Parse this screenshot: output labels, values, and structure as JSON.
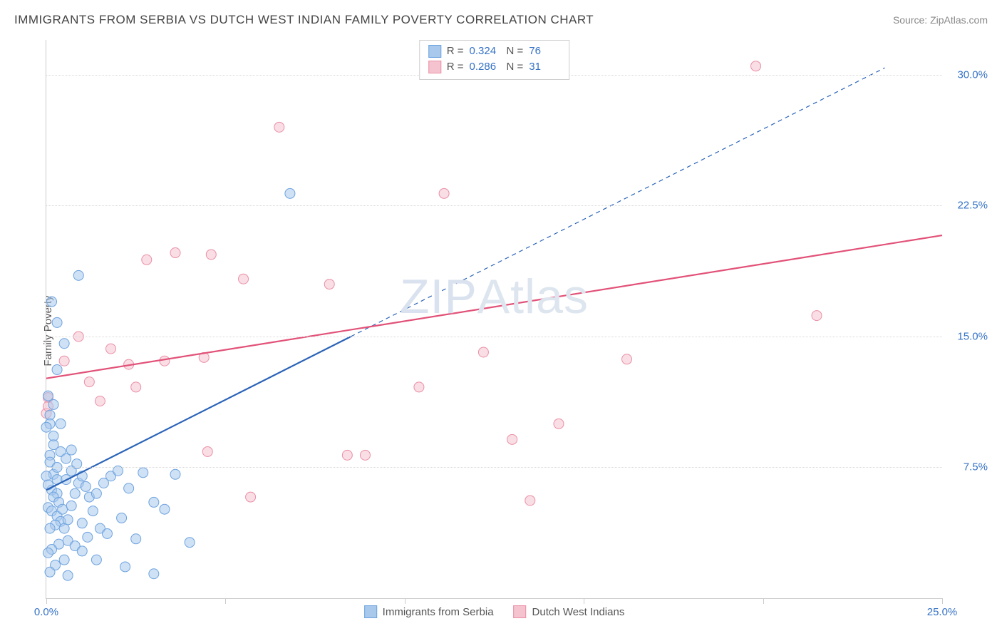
{
  "header": {
    "title": "IMMIGRANTS FROM SERBIA VS DUTCH WEST INDIAN FAMILY POVERTY CORRELATION CHART",
    "source_label": "Source: ",
    "source_value": "ZipAtlas.com"
  },
  "watermark": {
    "part1": "ZIP",
    "part2": "Atlas"
  },
  "chart": {
    "type": "scatter",
    "ylabel": "Family Poverty",
    "background_color": "#ffffff",
    "grid_color": "#d8d8d8",
    "axis_color": "#cccccc",
    "label_color": "#3572c6",
    "xlim": [
      0,
      25
    ],
    "ylim": [
      0,
      32
    ],
    "xticks": [
      0,
      5,
      10,
      15,
      20,
      25
    ],
    "xtick_labels": [
      "0.0%",
      "",
      "",
      "",
      "",
      "25.0%"
    ],
    "yticks": [
      7.5,
      15.0,
      22.5,
      30.0
    ],
    "ytick_labels": [
      "7.5%",
      "15.0%",
      "22.5%",
      "30.0%"
    ],
    "marker_radius": 7,
    "marker_opacity": 0.55,
    "line_width": 2.2,
    "series": [
      {
        "id": "serbia",
        "label": "Immigrants from Serbia",
        "color_fill": "#a8c8ec",
        "color_stroke": "#6ea3df",
        "line_color": "#2a63b8",
        "R": "0.324",
        "N": "76",
        "trend_solid": {
          "x1": 0,
          "y1": 6.2,
          "x2": 8.5,
          "y2": 15.0
        },
        "trend_dashed": {
          "x1": 8.5,
          "y1": 15.0,
          "x2": 23.4,
          "y2": 30.4
        },
        "points": [
          [
            0.1,
            10.5
          ],
          [
            0.1,
            10.0
          ],
          [
            0.2,
            11.1
          ],
          [
            0.0,
            9.8
          ],
          [
            0.2,
            8.8
          ],
          [
            0.1,
            8.2
          ],
          [
            0.1,
            7.8
          ],
          [
            0.2,
            7.1
          ],
          [
            0.3,
            7.5
          ],
          [
            0.3,
            6.8
          ],
          [
            0.0,
            7.0
          ],
          [
            0.15,
            6.2
          ],
          [
            0.3,
            6.0
          ],
          [
            0.05,
            6.5
          ],
          [
            0.2,
            5.8
          ],
          [
            0.35,
            5.5
          ],
          [
            0.05,
            5.2
          ],
          [
            0.15,
            5.0
          ],
          [
            0.3,
            4.7
          ],
          [
            0.45,
            5.1
          ],
          [
            0.4,
            4.4
          ],
          [
            0.25,
            4.2
          ],
          [
            0.1,
            4.0
          ],
          [
            0.5,
            4.0
          ],
          [
            0.6,
            4.5
          ],
          [
            0.7,
            5.3
          ],
          [
            0.8,
            6.0
          ],
          [
            0.9,
            6.6
          ],
          [
            0.55,
            6.8
          ],
          [
            0.7,
            7.3
          ],
          [
            0.85,
            7.7
          ],
          [
            1.0,
            7.0
          ],
          [
            1.1,
            6.4
          ],
          [
            1.2,
            5.8
          ],
          [
            1.3,
            5.0
          ],
          [
            1.4,
            6.0
          ],
          [
            1.6,
            6.6
          ],
          [
            1.8,
            7.0
          ],
          [
            2.0,
            7.3
          ],
          [
            2.3,
            6.3
          ],
          [
            2.1,
            4.6
          ],
          [
            2.5,
            3.4
          ],
          [
            2.7,
            7.2
          ],
          [
            3.0,
            5.5
          ],
          [
            3.3,
            5.1
          ],
          [
            3.6,
            7.1
          ],
          [
            1.5,
            4.0
          ],
          [
            1.7,
            3.7
          ],
          [
            1.0,
            4.3
          ],
          [
            1.15,
            3.5
          ],
          [
            0.6,
            3.3
          ],
          [
            0.8,
            3.0
          ],
          [
            1.0,
            2.7
          ],
          [
            1.4,
            2.2
          ],
          [
            2.2,
            1.8
          ],
          [
            3.0,
            1.4
          ],
          [
            0.35,
            3.1
          ],
          [
            0.15,
            2.8
          ],
          [
            0.5,
            2.2
          ],
          [
            0.05,
            2.6
          ],
          [
            0.25,
            1.9
          ],
          [
            0.6,
            1.3
          ],
          [
            0.1,
            1.5
          ],
          [
            0.05,
            11.6
          ],
          [
            0.3,
            13.1
          ],
          [
            0.5,
            14.6
          ],
          [
            0.3,
            15.8
          ],
          [
            0.15,
            17.0
          ],
          [
            0.9,
            18.5
          ],
          [
            0.4,
            8.4
          ],
          [
            0.55,
            8.0
          ],
          [
            0.7,
            8.5
          ],
          [
            0.2,
            9.3
          ],
          [
            0.4,
            10.0
          ],
          [
            4.0,
            3.2
          ],
          [
            6.8,
            23.2
          ]
        ]
      },
      {
        "id": "dutch_west_indian",
        "label": "Dutch West Indians",
        "color_fill": "#f5c3cf",
        "color_stroke": "#ea8fa6",
        "line_color": "#e25178",
        "R": "0.286",
        "N": "31",
        "trend_solid": {
          "x1": 0,
          "y1": 12.6,
          "x2": 25,
          "y2": 20.8
        },
        "points": [
          [
            0.05,
            11.5
          ],
          [
            0.0,
            10.6
          ],
          [
            0.05,
            11.0
          ],
          [
            0.5,
            13.6
          ],
          [
            0.9,
            15.0
          ],
          [
            1.2,
            12.4
          ],
          [
            1.8,
            14.3
          ],
          [
            2.3,
            13.4
          ],
          [
            2.5,
            12.1
          ],
          [
            3.3,
            13.6
          ],
          [
            3.6,
            19.8
          ],
          [
            4.6,
            19.7
          ],
          [
            4.4,
            13.8
          ],
          [
            4.5,
            8.4
          ],
          [
            5.5,
            18.3
          ],
          [
            5.7,
            5.8
          ],
          [
            6.5,
            27.0
          ],
          [
            7.9,
            18.0
          ],
          [
            8.4,
            8.2
          ],
          [
            8.9,
            8.2
          ],
          [
            10.4,
            12.1
          ],
          [
            11.1,
            23.2
          ],
          [
            12.2,
            14.1
          ],
          [
            13.0,
            9.1
          ],
          [
            13.5,
            5.6
          ],
          [
            14.3,
            10.0
          ],
          [
            16.2,
            13.7
          ],
          [
            19.8,
            30.5
          ],
          [
            21.5,
            16.2
          ],
          [
            2.8,
            19.4
          ],
          [
            1.5,
            11.3
          ]
        ]
      }
    ]
  },
  "legend_top": {
    "r_label": "R =",
    "n_label": "N ="
  },
  "swatch_blue": {
    "fill": "#a8c8ec",
    "stroke": "#6ea3df"
  },
  "swatch_pink": {
    "fill": "#f5c3cf",
    "stroke": "#ea8fa6"
  }
}
